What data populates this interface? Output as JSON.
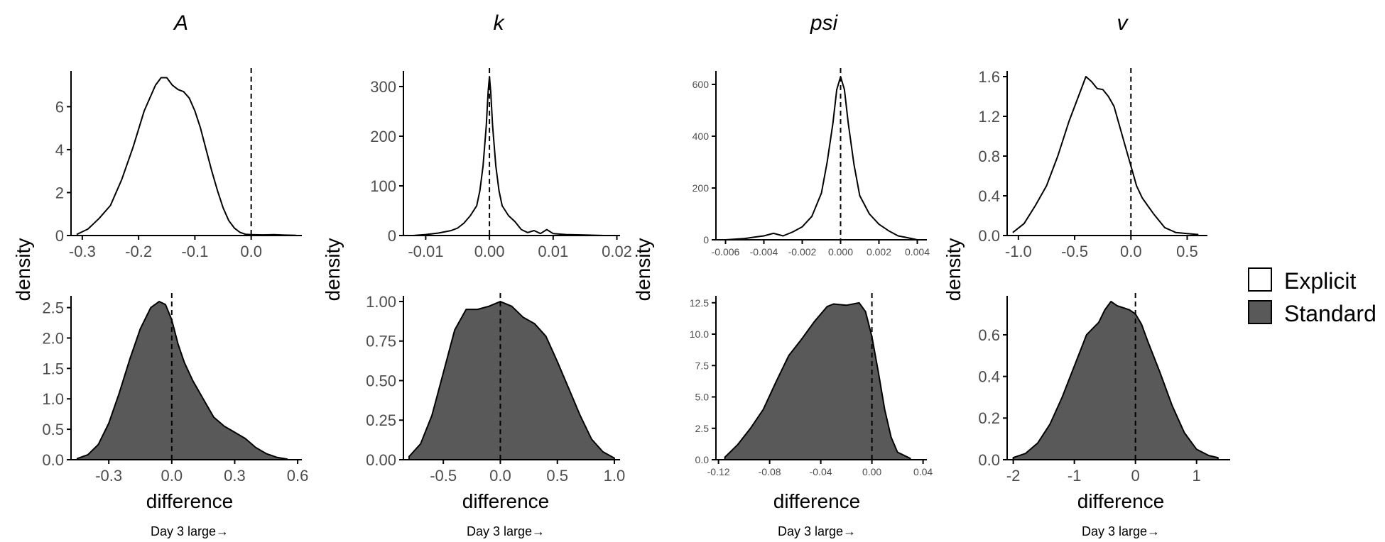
{
  "legend": {
    "items": [
      {
        "label": "Explicit",
        "fill": "#ffffff"
      },
      {
        "label": "Standard",
        "fill": "#595959"
      }
    ]
  },
  "colors": {
    "curve": "#000000",
    "standard_fill": "#595959",
    "axis": "#000000",
    "tick_text": "#4d4d4d"
  },
  "chart_data": [
    {
      "type": "area",
      "column_title": "A",
      "row": "Explicit",
      "series": "Explicit",
      "ylabel": "density",
      "xlabel": "",
      "xlim": [
        -0.32,
        0.09
      ],
      "ylim": [
        0,
        7.4
      ],
      "xticks": [
        -0.3,
        -0.2,
        -0.1,
        0.0
      ],
      "xtick_labels": [
        "-0.3",
        "-0.2",
        "-0.1",
        "0.0"
      ],
      "yticks": [
        0,
        2,
        4,
        6
      ],
      "ytick_labels": [
        "0",
        "2",
        "4",
        "6"
      ],
      "reference_line_x": 0.0,
      "x": [
        -0.31,
        -0.29,
        -0.27,
        -0.25,
        -0.23,
        -0.21,
        -0.19,
        -0.17,
        -0.16,
        -0.15,
        -0.14,
        -0.13,
        -0.12,
        -0.11,
        -0.1,
        -0.09,
        -0.08,
        -0.07,
        -0.06,
        -0.05,
        -0.04,
        -0.03,
        -0.02,
        -0.01,
        0.0,
        0.02,
        0.04,
        0.06,
        0.08
      ],
      "y": [
        0.05,
        0.3,
        0.8,
        1.4,
        2.6,
        4.1,
        5.8,
        7.0,
        7.35,
        7.35,
        7.0,
        6.8,
        6.7,
        6.4,
        5.8,
        5.0,
        4.0,
        3.0,
        2.1,
        1.3,
        0.7,
        0.35,
        0.15,
        0.06,
        0.04,
        0.03,
        0.04,
        0.02,
        0.01
      ]
    },
    {
      "type": "area",
      "column_title": "k",
      "row": "Explicit",
      "series": "Explicit",
      "ylabel": "density",
      "xlabel": "",
      "xlim": [
        -0.0135,
        0.0205
      ],
      "ylim": [
        0,
        320
      ],
      "xticks": [
        -0.01,
        0.0,
        0.01,
        0.02
      ],
      "xtick_labels": [
        "-0.01",
        "0.00",
        "0.01",
        "0.02"
      ],
      "yticks": [
        0,
        100,
        200,
        300
      ],
      "ytick_labels": [
        "0",
        "100",
        "200",
        "300"
      ],
      "reference_line_x": 0.0,
      "x": [
        -0.012,
        -0.01,
        -0.008,
        -0.006,
        -0.005,
        -0.004,
        -0.003,
        -0.002,
        -0.0015,
        -0.001,
        -0.0005,
        -0.0002,
        0.0,
        0.0002,
        0.0005,
        0.001,
        0.0015,
        0.002,
        0.003,
        0.004,
        0.005,
        0.006,
        0.007,
        0.008,
        0.009,
        0.01,
        0.012,
        0.015,
        0.018
      ],
      "y": [
        0,
        2,
        5,
        10,
        15,
        25,
        40,
        60,
        90,
        140,
        220,
        290,
        320,
        290,
        220,
        140,
        90,
        60,
        40,
        28,
        12,
        6,
        10,
        4,
        12,
        4,
        2,
        1,
        0
      ]
    },
    {
      "type": "area",
      "column_title": "psi",
      "row": "Explicit",
      "series": "Explicit",
      "ylabel": "density",
      "xlabel": "",
      "xlim": [
        -0.0065,
        0.0045
      ],
      "ylim": [
        0,
        630
      ],
      "xticks": [
        -0.006,
        -0.004,
        -0.002,
        0.0,
        0.002,
        0.004
      ],
      "xtick_labels": [
        "-0.006",
        "-0.004",
        "-0.002",
        "0.000",
        "0.002",
        "0.004"
      ],
      "yticks": [
        0,
        200,
        400,
        600
      ],
      "ytick_labels": [
        "0",
        "200",
        "400",
        "600"
      ],
      "reference_line_x": 0.0,
      "x": [
        -0.006,
        -0.005,
        -0.0045,
        -0.004,
        -0.0035,
        -0.003,
        -0.0025,
        -0.002,
        -0.0015,
        -0.001,
        -0.0007,
        -0.0004,
        -0.0002,
        0.0,
        0.0002,
        0.0004,
        0.0007,
        0.001,
        0.0015,
        0.002,
        0.0025,
        0.003,
        0.0035,
        0.004
      ],
      "y": [
        0,
        5,
        10,
        15,
        25,
        15,
        30,
        50,
        90,
        180,
        300,
        450,
        580,
        630,
        580,
        450,
        290,
        170,
        100,
        60,
        35,
        15,
        8,
        0
      ]
    },
    {
      "type": "area",
      "column_title": "v",
      "row": "Explicit",
      "series": "Explicit",
      "ylabel": "density",
      "xlabel": "",
      "xlim": [
        -1.1,
        0.68
      ],
      "ylim": [
        0,
        1.6
      ],
      "xticks": [
        -1.0,
        -0.5,
        0.0,
        0.5
      ],
      "xtick_labels": [
        "-1.0",
        "-0.5",
        "0.0",
        "0.5"
      ],
      "yticks": [
        0.0,
        0.4,
        0.8,
        1.2,
        1.6
      ],
      "ytick_labels": [
        "0.0",
        "0.4",
        "0.8",
        "1.2",
        "1.6"
      ],
      "reference_line_x": 0.0,
      "x": [
        -1.05,
        -0.95,
        -0.85,
        -0.75,
        -0.65,
        -0.55,
        -0.45,
        -0.4,
        -0.35,
        -0.3,
        -0.25,
        -0.2,
        -0.15,
        -0.1,
        -0.05,
        0.0,
        0.05,
        0.1,
        0.15,
        0.2,
        0.25,
        0.3,
        0.4,
        0.5,
        0.6
      ],
      "y": [
        0.03,
        0.12,
        0.3,
        0.5,
        0.8,
        1.15,
        1.45,
        1.6,
        1.55,
        1.48,
        1.47,
        1.4,
        1.3,
        1.1,
        0.9,
        0.7,
        0.5,
        0.38,
        0.3,
        0.22,
        0.15,
        0.08,
        0.03,
        0.02,
        0.01
      ]
    },
    {
      "type": "area",
      "column_title": "A",
      "row": "Standard",
      "series": "Standard",
      "ylabel": "density",
      "xlabel": "difference",
      "note": "Day 3 large→",
      "xlim": [
        -0.48,
        0.62
      ],
      "ylim": [
        0,
        2.6
      ],
      "xticks": [
        -0.3,
        0.0,
        0.3,
        0.6
      ],
      "xtick_labels": [
        "-0.3",
        "0.0",
        "0.3",
        "0.6"
      ],
      "yticks": [
        0.0,
        0.5,
        1.0,
        1.5,
        2.0,
        2.5
      ],
      "ytick_labels": [
        "0.0",
        "0.5",
        "1.0",
        "1.5",
        "2.0",
        "2.5"
      ],
      "reference_line_x": 0.0,
      "x": [
        -0.45,
        -0.4,
        -0.35,
        -0.3,
        -0.25,
        -0.2,
        -0.15,
        -0.1,
        -0.06,
        -0.03,
        0.0,
        0.03,
        0.06,
        0.1,
        0.15,
        0.2,
        0.25,
        0.3,
        0.35,
        0.4,
        0.45,
        0.5,
        0.55
      ],
      "y": [
        0.02,
        0.08,
        0.25,
        0.6,
        1.1,
        1.65,
        2.15,
        2.5,
        2.6,
        2.55,
        2.3,
        1.9,
        1.6,
        1.3,
        1.0,
        0.7,
        0.55,
        0.45,
        0.35,
        0.2,
        0.1,
        0.04,
        0.01
      ]
    },
    {
      "type": "area",
      "column_title": "k",
      "row": "Standard",
      "series": "Standard",
      "ylabel": "density",
      "xlabel": "difference",
      "note": "Day 3 large→",
      "xlim": [
        -0.85,
        1.05
      ],
      "ylim": [
        0,
        1.0
      ],
      "xticks": [
        -0.5,
        0.0,
        0.5,
        1.0
      ],
      "xtick_labels": [
        "-0.5",
        "0.0",
        "0.5",
        "1.0"
      ],
      "yticks": [
        0.0,
        0.25,
        0.5,
        0.75,
        1.0
      ],
      "ytick_labels": [
        "0.00",
        "0.25",
        "0.50",
        "0.75",
        "1.00"
      ],
      "reference_line_x": 0.0,
      "x": [
        -0.8,
        -0.7,
        -0.6,
        -0.5,
        -0.4,
        -0.3,
        -0.2,
        -0.1,
        0.0,
        0.1,
        0.2,
        0.3,
        0.4,
        0.5,
        0.6,
        0.7,
        0.8,
        0.9,
        1.0
      ],
      "y": [
        0.02,
        0.1,
        0.28,
        0.55,
        0.82,
        0.95,
        0.95,
        0.97,
        1.0,
        0.97,
        0.9,
        0.86,
        0.78,
        0.62,
        0.45,
        0.28,
        0.13,
        0.05,
        0.01
      ]
    },
    {
      "type": "area",
      "column_title": "psi",
      "row": "Standard",
      "series": "Standard",
      "ylabel": "density",
      "xlabel": "difference",
      "note": "Day 3 large→",
      "xlim": [
        -0.122,
        0.043
      ],
      "ylim": [
        0,
        12.6
      ],
      "xticks": [
        -0.12,
        -0.08,
        -0.04,
        0.0,
        0.04
      ],
      "xtick_labels": [
        "-0.12",
        "-0.08",
        "-0.04",
        "0.00",
        "0.04"
      ],
      "yticks": [
        0.0,
        2.5,
        5.0,
        7.5,
        10.0,
        12.5
      ],
      "ytick_labels": [
        "0.0",
        "2.5",
        "5.0",
        "7.5",
        "10.0",
        "12.5"
      ],
      "reference_line_x": 0.0,
      "x": [
        -0.115,
        -0.105,
        -0.095,
        -0.085,
        -0.075,
        -0.065,
        -0.055,
        -0.045,
        -0.035,
        -0.03,
        -0.02,
        -0.01,
        -0.005,
        0.0,
        0.005,
        0.01,
        0.015,
        0.02,
        0.03
      ],
      "y": [
        0.2,
        1.2,
        2.5,
        4.0,
        6.2,
        8.3,
        9.6,
        11.0,
        12.2,
        12.4,
        12.3,
        12.5,
        11.8,
        9.8,
        7.0,
        4.0,
        1.8,
        0.6,
        0.1
      ]
    },
    {
      "type": "area",
      "column_title": "v",
      "row": "Standard",
      "series": "Standard",
      "ylabel": "density",
      "xlabel": "difference",
      "note": "Day 3 large→",
      "xlim": [
        -2.1,
        1.55
      ],
      "ylim": [
        0,
        0.76
      ],
      "xticks": [
        -2,
        -1,
        0,
        1
      ],
      "xtick_labels": [
        "-2",
        "-1",
        "0",
        "1"
      ],
      "yticks": [
        0.0,
        0.2,
        0.4,
        0.6
      ],
      "ytick_labels": [
        "0.0",
        "0.2",
        "0.4",
        "0.6"
      ],
      "reference_line_x": 0.0,
      "x": [
        -2.0,
        -1.8,
        -1.6,
        -1.4,
        -1.2,
        -1.0,
        -0.8,
        -0.6,
        -0.5,
        -0.4,
        -0.3,
        -0.2,
        -0.1,
        0.0,
        0.1,
        0.2,
        0.4,
        0.6,
        0.8,
        1.0,
        1.2,
        1.35
      ],
      "y": [
        0.01,
        0.03,
        0.08,
        0.17,
        0.3,
        0.45,
        0.6,
        0.66,
        0.72,
        0.76,
        0.74,
        0.73,
        0.72,
        0.7,
        0.65,
        0.57,
        0.42,
        0.26,
        0.13,
        0.05,
        0.02,
        0.01
      ]
    }
  ]
}
